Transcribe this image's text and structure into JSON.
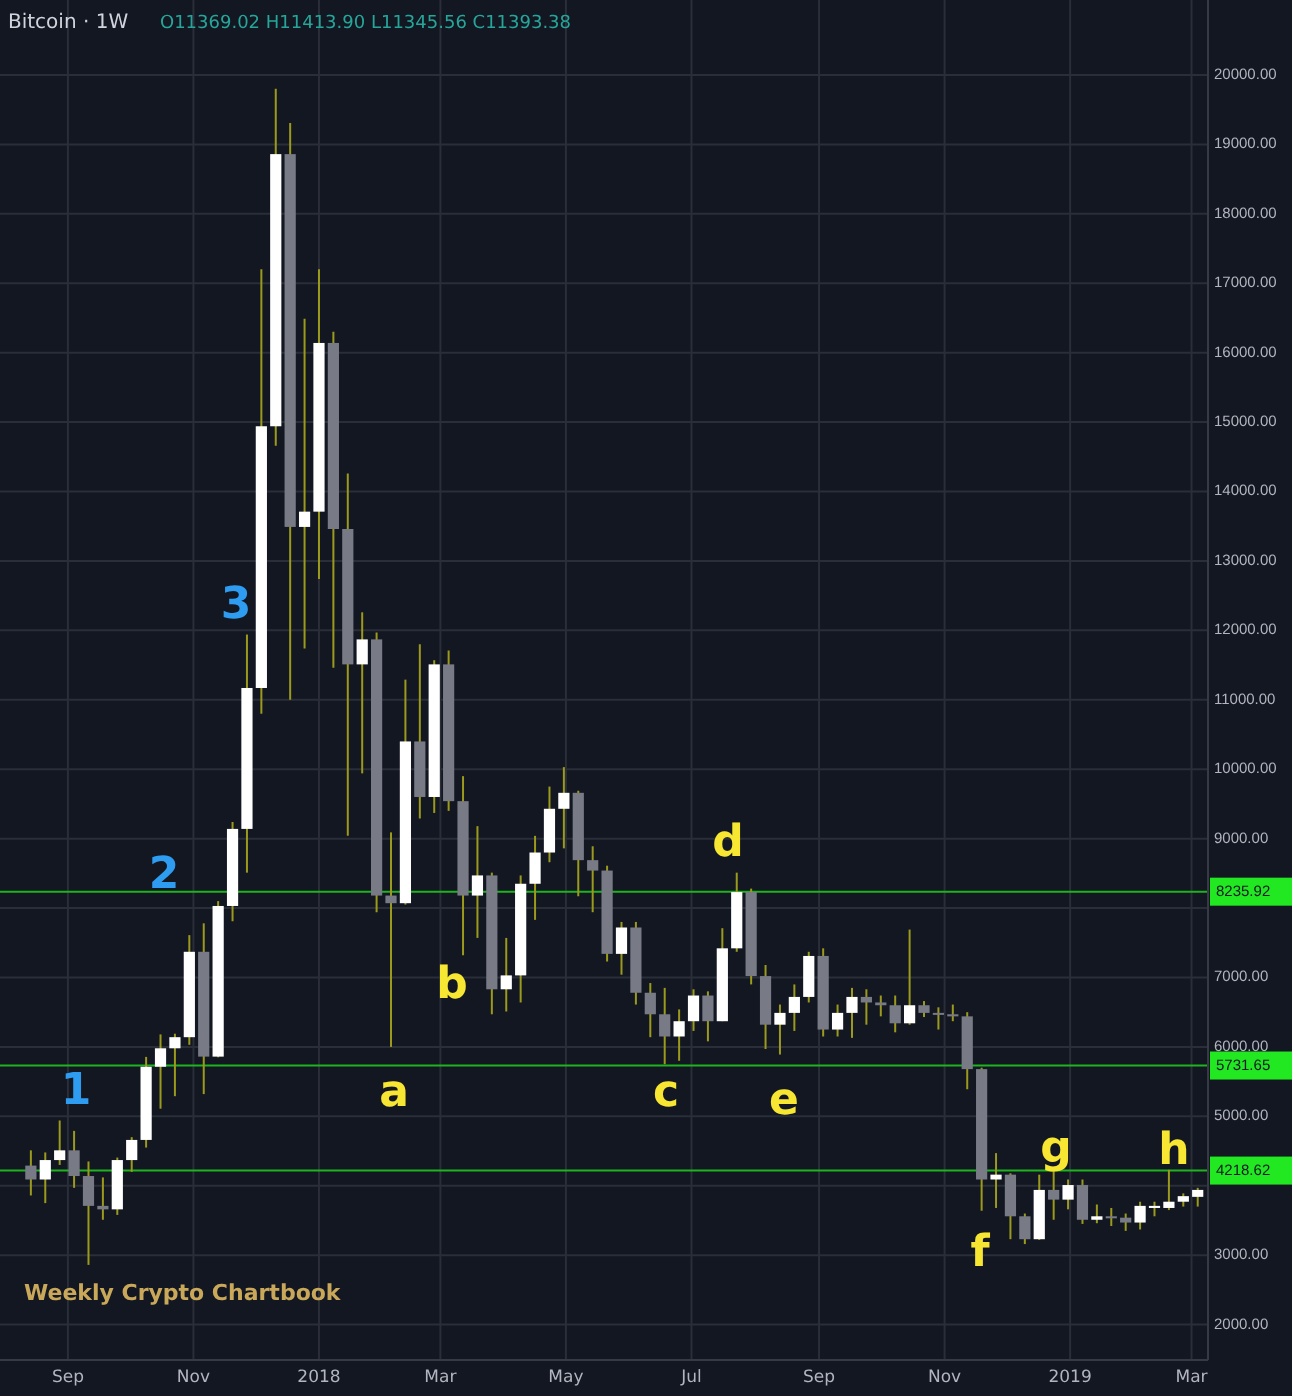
{
  "chart_data": {
    "type": "candlestick",
    "title": "Bitcoin · 1W",
    "annotations": [
      "O11369.02 H11413.90 L11345.56 C11393.38",
      "Weekly Crypto Chartbook",
      "1",
      "2",
      "3",
      "a",
      "b",
      "c",
      "d",
      "e",
      "f",
      "g",
      "h"
    ],
    "x": [
      "2017-08-14",
      "2017-08-21",
      "2017-08-28",
      "2017-09-04",
      "2017-09-11",
      "2017-09-18",
      "2017-09-25",
      "2017-10-02",
      "2017-10-09",
      "2017-10-16",
      "2017-10-23",
      "2017-10-30",
      "2017-11-06",
      "2017-11-13",
      "2017-11-20",
      "2017-11-27",
      "2017-12-04",
      "2017-12-11",
      "2017-12-18",
      "2017-12-25",
      "2018-01-01",
      "2018-01-08",
      "2018-01-15",
      "2018-01-22",
      "2018-01-29",
      "2018-02-05",
      "2018-02-12",
      "2018-02-19",
      "2018-02-26",
      "2018-03-05",
      "2018-03-12",
      "2018-03-19",
      "2018-03-26",
      "2018-04-02",
      "2018-04-09",
      "2018-04-16",
      "2018-04-23",
      "2018-04-30",
      "2018-05-07",
      "2018-05-14",
      "2018-05-21",
      "2018-05-28",
      "2018-06-04",
      "2018-06-11",
      "2018-06-18",
      "2018-06-25",
      "2018-07-02",
      "2018-07-09",
      "2018-07-16",
      "2018-07-23",
      "2018-07-30",
      "2018-08-06",
      "2018-08-13",
      "2018-08-20",
      "2018-08-27",
      "2018-09-03",
      "2018-09-10",
      "2018-09-17",
      "2018-09-24",
      "2018-10-01",
      "2018-10-08",
      "2018-10-15",
      "2018-10-22",
      "2018-10-29",
      "2018-11-05",
      "2018-11-12",
      "2018-11-19",
      "2018-11-26",
      "2018-12-03",
      "2018-12-10",
      "2018-12-17",
      "2018-12-24",
      "2018-12-31",
      "2019-01-07",
      "2019-01-14",
      "2019-01-21",
      "2019-01-28",
      "2019-02-04",
      "2019-02-11",
      "2019-02-18",
      "2019-02-25",
      "2019-03-04"
    ],
    "ohlc": [
      [
        4290,
        4510,
        3860,
        4090
      ],
      [
        4090,
        4480,
        3750,
        4370
      ],
      [
        4370,
        4940,
        4300,
        4510
      ],
      [
        4510,
        4790,
        3970,
        4140
      ],
      [
        4140,
        4350,
        2860,
        3710
      ],
      [
        3710,
        4120,
        3510,
        3660
      ],
      [
        3660,
        4406,
        3580,
        4370
      ],
      [
        4370,
        4700,
        4200,
        4660
      ],
      [
        4660,
        5856,
        4550,
        5714
      ],
      [
        5714,
        6180,
        5110,
        5980
      ],
      [
        5980,
        6190,
        5290,
        6140
      ],
      [
        6140,
        7610,
        6030,
        7370
      ],
      [
        7370,
        7780,
        5320,
        5860
      ],
      [
        5860,
        8100,
        5850,
        8030
      ],
      [
        8030,
        9240,
        7810,
        9140
      ],
      [
        9140,
        11940,
        8510,
        11170
      ],
      [
        11170,
        17200,
        10800,
        14940
      ],
      [
        14940,
        19800,
        14660,
        18860
      ],
      [
        18860,
        19310,
        11000,
        13490
      ],
      [
        13490,
        16490,
        11740,
        13710
      ],
      [
        13710,
        17200,
        12740,
        16140
      ],
      [
        16140,
        16300,
        11460,
        13460
      ],
      [
        13460,
        14260,
        9040,
        11510
      ],
      [
        11510,
        12260,
        9940,
        11870
      ],
      [
        11870,
        11970,
        7940,
        8180
      ],
      [
        8180,
        9090,
        6000,
        8070
      ],
      [
        8070,
        11290,
        8050,
        10400
      ],
      [
        10400,
        11800,
        9290,
        9600
      ],
      [
        9600,
        11570,
        9370,
        11510
      ],
      [
        11510,
        11710,
        9400,
        9540
      ],
      [
        9540,
        9900,
        7320,
        8180
      ],
      [
        8180,
        9180,
        7570,
        8470
      ],
      [
        8470,
        8510,
        6470,
        6830
      ],
      [
        6830,
        7570,
        6510,
        7030
      ],
      [
        7030,
        8470,
        6640,
        8350
      ],
      [
        8350,
        9040,
        7830,
        8800
      ],
      [
        8800,
        9750,
        8660,
        9430
      ],
      [
        9430,
        10030,
        8860,
        9660
      ],
      [
        9660,
        9690,
        8170,
        8690
      ],
      [
        8690,
        8890,
        7940,
        8540
      ],
      [
        8540,
        8610,
        7230,
        7340
      ],
      [
        7340,
        7800,
        7040,
        7720
      ],
      [
        7720,
        7800,
        6610,
        6780
      ],
      [
        6780,
        6920,
        6140,
        6470
      ],
      [
        6470,
        6850,
        5750,
        6150
      ],
      [
        6150,
        6540,
        5800,
        6370
      ],
      [
        6370,
        6830,
        6230,
        6740
      ],
      [
        6740,
        6800,
        6080,
        6370
      ],
      [
        6370,
        7710,
        6370,
        7420
      ],
      [
        7420,
        8510,
        7370,
        8230
      ],
      [
        8230,
        8280,
        6900,
        7020
      ],
      [
        7020,
        7180,
        5970,
        6320
      ],
      [
        6320,
        6610,
        5890,
        6490
      ],
      [
        6490,
        6900,
        6230,
        6720
      ],
      [
        6720,
        7370,
        6640,
        7310
      ],
      [
        7310,
        7420,
        6150,
        6250
      ],
      [
        6250,
        6610,
        6150,
        6490
      ],
      [
        6490,
        6850,
        6130,
        6720
      ],
      [
        6720,
        6830,
        6320,
        6640
      ],
      [
        6640,
        6740,
        6440,
        6600
      ],
      [
        6600,
        6740,
        6210,
        6340
      ],
      [
        6340,
        7690,
        6320,
        6600
      ],
      [
        6600,
        6660,
        6430,
        6490
      ],
      [
        6490,
        6570,
        6250,
        6470
      ],
      [
        6470,
        6610,
        6370,
        6440
      ],
      [
        6440,
        6500,
        5390,
        5680
      ],
      [
        5680,
        5700,
        3640,
        4090
      ],
      [
        4090,
        4470,
        3680,
        4160
      ],
      [
        4160,
        4180,
        3230,
        3560
      ],
      [
        3560,
        3600,
        3160,
        3230
      ],
      [
        3230,
        4160,
        3220,
        3940
      ],
      [
        3940,
        4230,
        3510,
        3800
      ],
      [
        3800,
        4090,
        3660,
        4010
      ],
      [
        4010,
        4090,
        3450,
        3510
      ],
      [
        3510,
        3730,
        3460,
        3560
      ],
      [
        3560,
        3680,
        3420,
        3540
      ],
      [
        3540,
        3600,
        3350,
        3470
      ],
      [
        3470,
        3770,
        3370,
        3710
      ],
      [
        3680,
        3770,
        3560,
        3710
      ],
      [
        3680,
        4230,
        3650,
        3770
      ],
      [
        3770,
        3890,
        3700,
        3850
      ],
      [
        3840,
        3970,
        3700,
        3940
      ]
    ],
    "colors": [
      "#787b86",
      "#ffffff",
      "#ffffff",
      "#787b86",
      "#787b86",
      "#787b86",
      "#ffffff",
      "#ffffff",
      "#ffffff",
      "#ffffff",
      "#ffffff",
      "#ffffff",
      "#787b86",
      "#ffffff",
      "#ffffff",
      "#ffffff",
      "#ffffff",
      "#ffffff",
      "#787b86",
      "#ffffff",
      "#ffffff",
      "#787b86",
      "#787b86",
      "#ffffff",
      "#787b86",
      "#787b86",
      "#ffffff",
      "#787b86",
      "#ffffff",
      "#787b86",
      "#787b86",
      "#ffffff",
      "#787b86",
      "#ffffff",
      "#ffffff",
      "#ffffff",
      "#ffffff",
      "#ffffff",
      "#787b86",
      "#787b86",
      "#787b86",
      "#ffffff",
      "#787b86",
      "#787b86",
      "#787b86",
      "#ffffff",
      "#ffffff",
      "#787b86",
      "#ffffff",
      "#ffffff",
      "#787b86",
      "#787b86",
      "#ffffff",
      "#ffffff",
      "#ffffff",
      "#787b86",
      "#ffffff",
      "#ffffff",
      "#787b86",
      "#787b86",
      "#787b86",
      "#ffffff",
      "#787b86",
      "#787b86",
      "#787b86",
      "#787b86",
      "#787b86",
      "#ffffff",
      "#787b86",
      "#787b86",
      "#ffffff",
      "#787b86",
      "#ffffff",
      "#787b86",
      "#ffffff",
      "#787b86",
      "#787b86",
      "#ffffff",
      "#ffffff",
      "#ffffff",
      "#ffffff",
      "#ffffff"
    ],
    "xlim": [
      "2017-07-30",
      "2019-03-09"
    ],
    "xticks": [
      {
        "value": "2017-09-01",
        "label": "Sep"
      },
      {
        "value": "2017-11-01",
        "label": "Nov"
      },
      {
        "value": "2018-01-01",
        "label": "2018"
      },
      {
        "value": "2018-03-01",
        "label": "Mar"
      },
      {
        "value": "2018-05-01",
        "label": "May"
      },
      {
        "value": "2018-07-01",
        "label": "Jul"
      },
      {
        "value": "2018-09-01",
        "label": "Sep"
      },
      {
        "value": "2018-11-01",
        "label": "Nov"
      },
      {
        "value": "2019-01-01",
        "label": "2019"
      },
      {
        "value": "2019-03-01",
        "label": "Mar"
      }
    ],
    "ylim": [
      1490,
      21080
    ],
    "yticks": [
      {
        "value": 2000,
        "label": "2000.00"
      },
      {
        "value": 3000,
        "label": "3000.00"
      },
      {
        "value": 4000,
        "label": null
      },
      {
        "value": 5000,
        "label": "5000.00"
      },
      {
        "value": 6000,
        "label": "6000.00"
      },
      {
        "value": 7000,
        "label": "7000.00"
      },
      {
        "value": 8000,
        "label": null
      },
      {
        "value": 9000,
        "label": "9000.00"
      },
      {
        "value": 10000,
        "label": "10000.00"
      },
      {
        "value": 11000,
        "label": "11000.00"
      },
      {
        "value": 12000,
        "label": "12000.00"
      },
      {
        "value": 13000,
        "label": "13000.00"
      },
      {
        "value": 14000,
        "label": "14000.00"
      },
      {
        "value": 15000,
        "label": "15000.00"
      },
      {
        "value": 16000,
        "label": "16000.00"
      },
      {
        "value": 17000,
        "label": "17000.00"
      },
      {
        "value": 18000,
        "label": "18000.00"
      },
      {
        "value": 19000,
        "label": "19000.00"
      },
      {
        "value": 20000,
        "label": "20000.00"
      }
    ],
    "ref_lines": [
      {
        "axis": "y",
        "value": 8235.92,
        "label": "8235.92",
        "color": "#1db41d"
      },
      {
        "axis": "y",
        "value": 5731.65,
        "label": "5731.65",
        "color": "#1db41d"
      },
      {
        "axis": "y",
        "value": 4218.62,
        "label": "4218.62",
        "color": "#1db41d"
      }
    ],
    "grid": true
  }
}
